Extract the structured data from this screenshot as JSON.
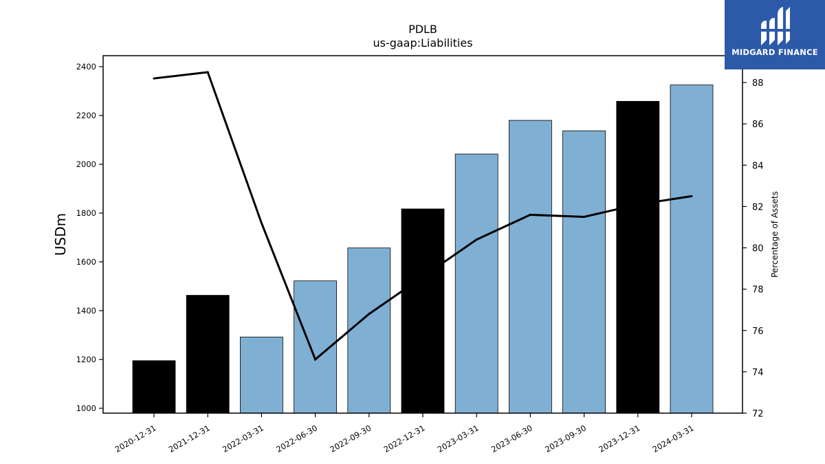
{
  "logo": {
    "text": "MIDGARD FINANCE"
  },
  "chart_data": {
    "type": "bar",
    "title": "PDLB",
    "subtitle": "us-gaap:Liabilities",
    "ylabel": "USDm",
    "y2label": "Percentage of Assets",
    "ylim": [
      980,
      2445
    ],
    "y2lim": [
      72,
      89.3
    ],
    "yticks": [
      1000,
      1200,
      1400,
      1600,
      1800,
      2000,
      2200,
      2400
    ],
    "y2ticks": [
      72,
      74,
      76,
      78,
      80,
      82,
      84,
      86,
      88
    ],
    "categories": [
      "2020-12-31",
      "2021-12-31",
      "2022-03-31",
      "2022-06-30",
      "2022-09-30",
      "2022-12-31",
      "2023-03-31",
      "2023-06-30",
      "2023-09-30",
      "2023-12-31",
      "2024-03-31"
    ],
    "values": [
      1195,
      1463,
      1292,
      1522,
      1657,
      1817,
      2042,
      2180,
      2137,
      2258,
      2325
    ],
    "bar_colors": [
      "#000000",
      "#000000",
      "#7fb0d3",
      "#7fb0d3",
      "#7fb0d3",
      "#000000",
      "#7fb0d3",
      "#7fb0d3",
      "#7fb0d3",
      "#000000",
      "#7fb0d3"
    ],
    "line_values": [
      88.2,
      88.5,
      81.2,
      74.6,
      76.8,
      78.6,
      80.4,
      81.6,
      81.5,
      82.1,
      82.5
    ],
    "line_color": "#000000",
    "grid": false
  }
}
